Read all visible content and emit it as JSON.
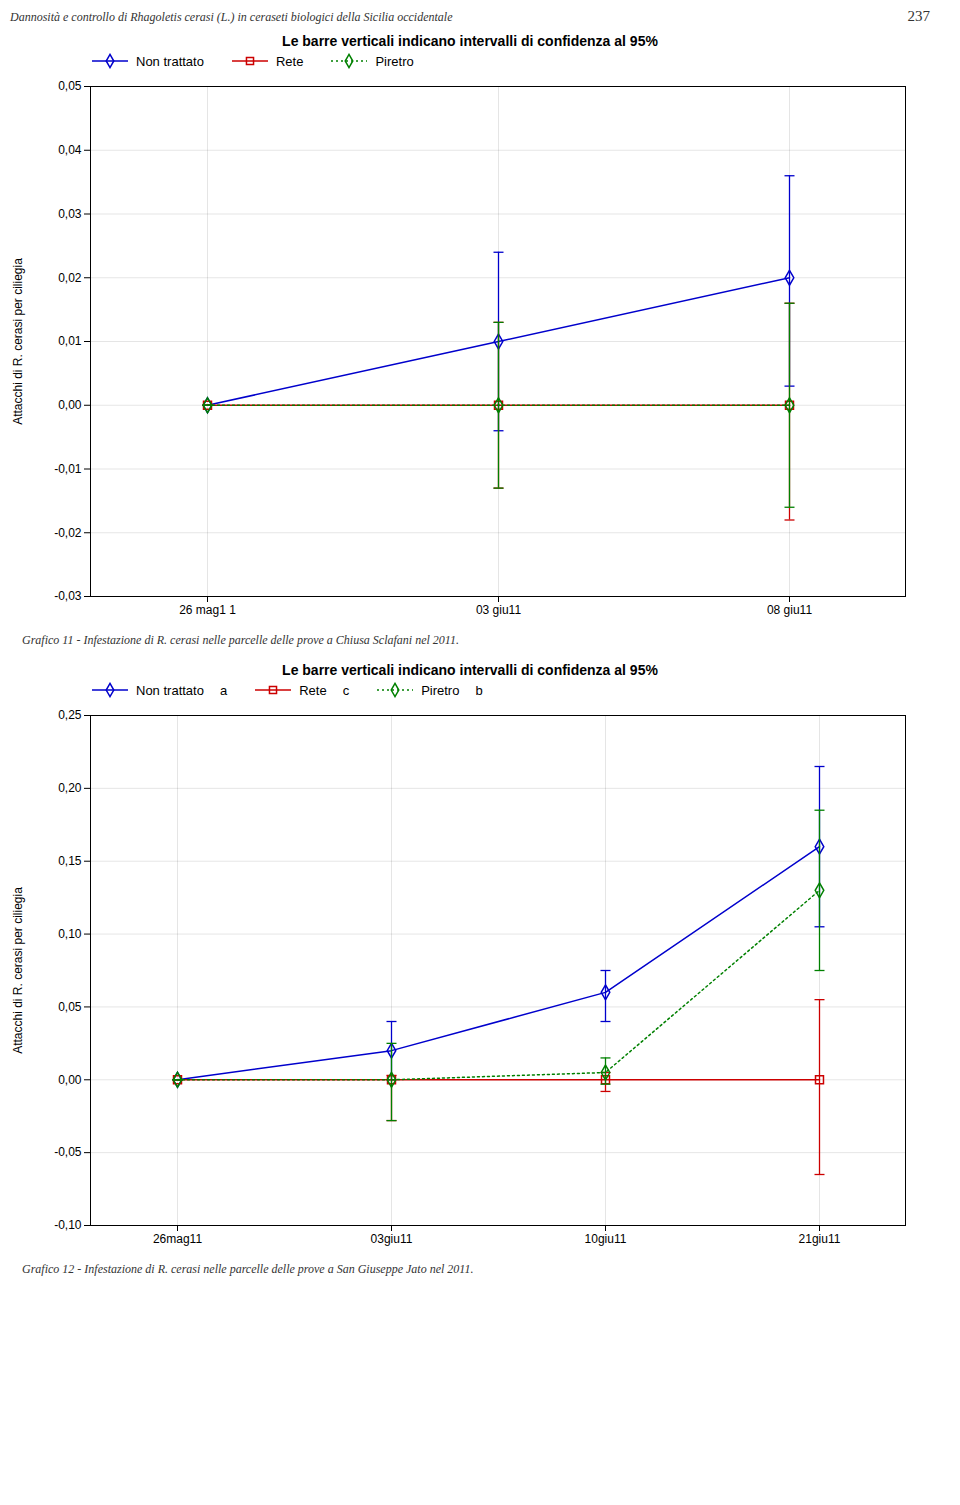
{
  "title": "Dannosità e controllo di Rhagoletis cerasi (L.) in ceraseti biologici della Sicilia occidentale",
  "annotations": [
    "237"
  ],
  "chart_data": [
    {
      "type": "line",
      "title": "Le barre verticali indicano intervalli di confidenza al 95%",
      "y_label": "Attacchi di R. cerasi per ciliegia",
      "categories": [
        "26 mag1 1",
        "03 giu11",
        "08 giu11"
      ],
      "ylim": [
        -0.03,
        0.05
      ],
      "yticks": [
        {
          "value": -0.03,
          "label": "-0,03"
        },
        {
          "value": -0.02,
          "label": "-0,02"
        },
        {
          "value": -0.01,
          "label": "-0,01"
        },
        {
          "value": 0.0,
          "label": "0,00"
        },
        {
          "value": 0.01,
          "label": "0,01"
        },
        {
          "value": 0.02,
          "label": "0,02"
        },
        {
          "value": 0.03,
          "label": "0,03"
        },
        {
          "value": 0.04,
          "label": "0,04"
        },
        {
          "value": 0.05,
          "label": "0,05"
        }
      ],
      "grid": true,
      "legend": "upper left",
      "series": [
        {
          "name": "Non trattato",
          "color": "#0000cc",
          "line_style": "solid",
          "marker": "diamond",
          "values": [
            0.0,
            0.01,
            0.02
          ],
          "yerr_low": [
            0.0,
            0.014,
            0.017
          ],
          "yerr_high": [
            0.0,
            0.014,
            0.016
          ]
        },
        {
          "name": "Rete",
          "color": "#cc0000",
          "line_style": "solid",
          "marker": "square",
          "values": [
            0.0,
            0.0,
            0.0
          ],
          "yerr_low": [
            0.0,
            0.013,
            0.018
          ],
          "yerr_high": [
            0.0,
            0.013,
            0.016
          ]
        },
        {
          "name": "Piretro",
          "color": "#008000",
          "line_style": "dotted",
          "marker": "diamond",
          "values": [
            0.0,
            0.0,
            0.0
          ],
          "yerr_low": [
            0.0,
            0.013,
            0.016
          ],
          "yerr_high": [
            0.0,
            0.013,
            0.016
          ]
        }
      ],
      "caption": "Grafico 11 - Infestazione di R. cerasi nelle parcelle delle prove a Chiusa Sclafani nel 2011."
    },
    {
      "type": "line",
      "title": "Le barre verticali indicano intervalli di confidenza al 95%",
      "y_label": "Attacchi di R. cerasi per ciliegia",
      "categories": [
        "26mag11",
        "03giu11",
        "10giu11",
        "21giu11"
      ],
      "ylim": [
        -0.1,
        0.25
      ],
      "yticks": [
        {
          "value": -0.1,
          "label": "-0,10"
        },
        {
          "value": -0.05,
          "label": "-0,05"
        },
        {
          "value": 0.0,
          "label": "0,00"
        },
        {
          "value": 0.05,
          "label": "0,05"
        },
        {
          "value": 0.1,
          "label": "0,10"
        },
        {
          "value": 0.15,
          "label": "0,15"
        },
        {
          "value": 0.2,
          "label": "0,20"
        },
        {
          "value": 0.25,
          "label": "0,25"
        }
      ],
      "grid": true,
      "legend": "upper left",
      "series": [
        {
          "name": "Non trattato",
          "color": "#0000cc",
          "line_style": "solid",
          "marker": "diamond",
          "values": [
            0.0,
            0.02,
            0.06,
            0.16
          ],
          "yerr_low": [
            0.0,
            0.02,
            0.02,
            0.055
          ],
          "yerr_high": [
            0.0,
            0.02,
            0.015,
            0.055
          ]
        },
        {
          "name": "Rete",
          "color": "#cc0000",
          "line_style": "solid",
          "marker": "square",
          "values": [
            0.0,
            0.0,
            0.0,
            0.0
          ],
          "yerr_low": [
            0.0,
            0.028,
            0.008,
            0.065
          ],
          "yerr_high": [
            0.0,
            0.003,
            0.005,
            0.055
          ]
        },
        {
          "name": "Piretro",
          "color": "#008000",
          "line_style": "dotted",
          "marker": "diamond",
          "values": [
            0.0,
            0.0,
            0.005,
            0.13
          ],
          "yerr_low": [
            0.0,
            0.028,
            0.008,
            0.055
          ],
          "yerr_high": [
            0.0,
            0.025,
            0.01,
            0.055
          ]
        }
      ],
      "annotations": [
        {
          "text": "a",
          "series": "Non trattato"
        },
        {
          "text": "c",
          "series": "Rete"
        },
        {
          "text": "b",
          "series": "Piretro"
        }
      ],
      "caption": "Grafico 12 - Infestazione di R. cerasi nelle parcelle delle prove a San Giuseppe Jato nel 2011."
    }
  ]
}
